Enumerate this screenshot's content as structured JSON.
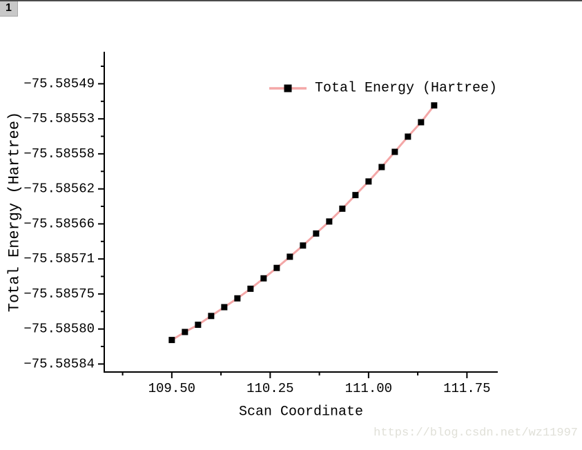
{
  "page": {
    "tab_label": "1",
    "background": "#ffffff",
    "top_border_color": "#4a4a4a",
    "tab_background": "#c8c8c8"
  },
  "watermark": {
    "text": "https://blog.csdn.net/wz11997",
    "color": "#e0e0d8"
  },
  "chart_data": {
    "type": "line",
    "title": "",
    "xlabel": "Scan Coordinate",
    "ylabel": "Total Energy (Hartree)",
    "legend": {
      "label": "Total Energy (Hartree)",
      "position": "top-right"
    },
    "grid": false,
    "axis_color": "#000000",
    "line_color": "#f4a7a7",
    "marker": "square",
    "marker_color": "#000000",
    "xlim": [
      108.985,
      111.985
    ],
    "ylim": [
      -75.58585,
      -75.58545
    ],
    "x_major_ticks": [
      {
        "value": 109.5,
        "label": "109.50"
      },
      {
        "value": 110.25,
        "label": "110.25"
      },
      {
        "value": 111.0,
        "label": "111.00"
      },
      {
        "value": 111.75,
        "label": "111.75"
      }
    ],
    "x_minor_ticks": [
      109.125,
      109.875,
      110.625,
      111.375
    ],
    "y_major_ticks": [
      {
        "value": -75.58549,
        "label": "−75.58549"
      },
      {
        "value": -75.5855338,
        "label": "−75.58553"
      },
      {
        "value": -75.5855775,
        "label": "−75.58558"
      },
      {
        "value": -75.5856213,
        "label": "−75.58562"
      },
      {
        "value": -75.585665,
        "label": "−75.58566"
      },
      {
        "value": -75.5857088,
        "label": "−75.58571"
      },
      {
        "value": -75.5857525,
        "label": "−75.58575"
      },
      {
        "value": -75.5857963,
        "label": "−75.58580"
      },
      {
        "value": -75.58584,
        "label": "−75.58584"
      }
    ],
    "y_minor_ticks": [
      -75.5854681,
      -75.5855119,
      -75.5855556,
      -75.5855994,
      -75.5856431,
      -75.5856869,
      -75.5857306,
      -75.5857744,
      -75.5858181
    ],
    "series": [
      {
        "name": "Total Energy (Hartree)",
        "x": [
          109.5,
          109.6,
          109.7,
          109.8,
          109.9,
          110.0,
          110.1,
          110.2,
          110.3,
          110.4,
          110.5,
          110.6,
          110.7,
          110.8,
          110.9,
          111.0,
          111.1,
          111.2,
          111.3,
          111.4,
          111.5
        ],
        "y": [
          -75.58581,
          -75.5858,
          -75.585791,
          -75.58578,
          -75.585769,
          -75.585758,
          -75.585746,
          -75.585733,
          -75.58572,
          -75.585706,
          -75.585692,
          -75.585677,
          -75.585662,
          -75.585646,
          -75.585629,
          -75.585612,
          -75.585594,
          -75.585575,
          -75.585556,
          -75.585538,
          -75.585517
        ]
      }
    ]
  }
}
